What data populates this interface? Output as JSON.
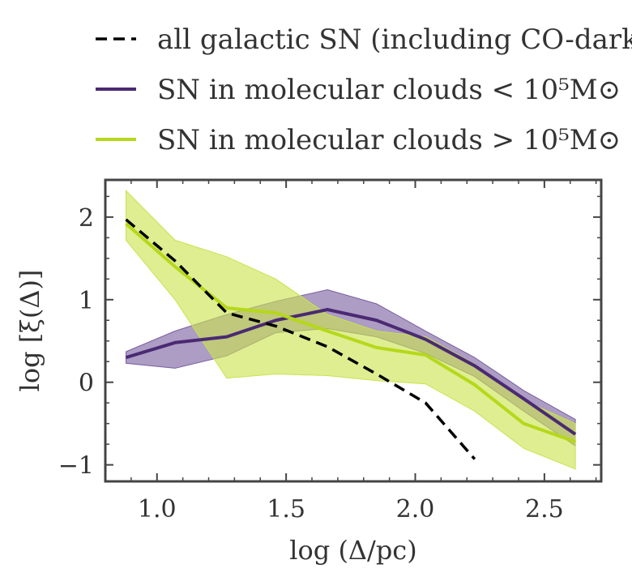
{
  "chart_data": {
    "type": "line",
    "xlabel": "log (Δ/pc)",
    "ylabel": "log [ξ(Δ)]",
    "xlim": [
      0.8,
      2.72
    ],
    "ylim": [
      -1.2,
      2.45
    ],
    "xticks": [
      1.0,
      1.5,
      2.0,
      2.5
    ],
    "xtick_labels": [
      "1.0",
      "1.5",
      "2.0",
      "2.5"
    ],
    "yticks": [
      -1,
      0,
      1,
      2
    ],
    "ytick_labels": [
      "−1",
      "0",
      "1",
      "2"
    ],
    "legend_placement": "above plot",
    "grid": false,
    "series": [
      {
        "name": "all galactic SN (including CO-dark)",
        "color": "#000000",
        "style": "dashed",
        "x": [
          0.88,
          1.07,
          1.27,
          1.46,
          1.66,
          1.85,
          2.04,
          2.23
        ],
        "y": [
          1.97,
          1.47,
          0.84,
          0.68,
          0.43,
          0.1,
          -0.25,
          -0.93
        ]
      },
      {
        "name": "SN in molecular clouds < 10⁵M⊙",
        "color": "#4a2a72",
        "style": "solid",
        "x": [
          0.88,
          1.07,
          1.27,
          1.46,
          1.66,
          1.85,
          2.04,
          2.23,
          2.42,
          2.62
        ],
        "y": [
          0.3,
          0.48,
          0.55,
          0.75,
          0.88,
          0.75,
          0.52,
          0.2,
          -0.2,
          -0.63
        ],
        "band_lower": [
          0.23,
          0.17,
          0.32,
          0.6,
          0.65,
          0.55,
          0.35,
          0.07,
          -0.35,
          -0.77
        ],
        "band_upper": [
          0.37,
          0.62,
          0.82,
          0.98,
          1.12,
          0.95,
          0.62,
          0.3,
          -0.1,
          -0.45
        ],
        "band_color": "#7a5fa0"
      },
      {
        "name": "SN in molecular clouds > 10⁵M⊙",
        "color": "#b5d81a",
        "style": "solid",
        "x": [
          0.88,
          1.07,
          1.27,
          1.46,
          1.66,
          1.85,
          2.04,
          2.23,
          2.42,
          2.62
        ],
        "y": [
          1.92,
          1.4,
          0.9,
          0.84,
          0.62,
          0.42,
          0.33,
          -0.03,
          -0.5,
          -0.72
        ],
        "band_lower": [
          1.72,
          1.0,
          0.05,
          0.1,
          0.08,
          0.02,
          -0.02,
          -0.35,
          -0.8,
          -1.05
        ],
        "band_upper": [
          2.32,
          1.72,
          1.52,
          1.25,
          0.82,
          0.62,
          0.55,
          0.22,
          -0.22,
          -0.5
        ],
        "band_color": "#c9e34e"
      }
    ]
  }
}
